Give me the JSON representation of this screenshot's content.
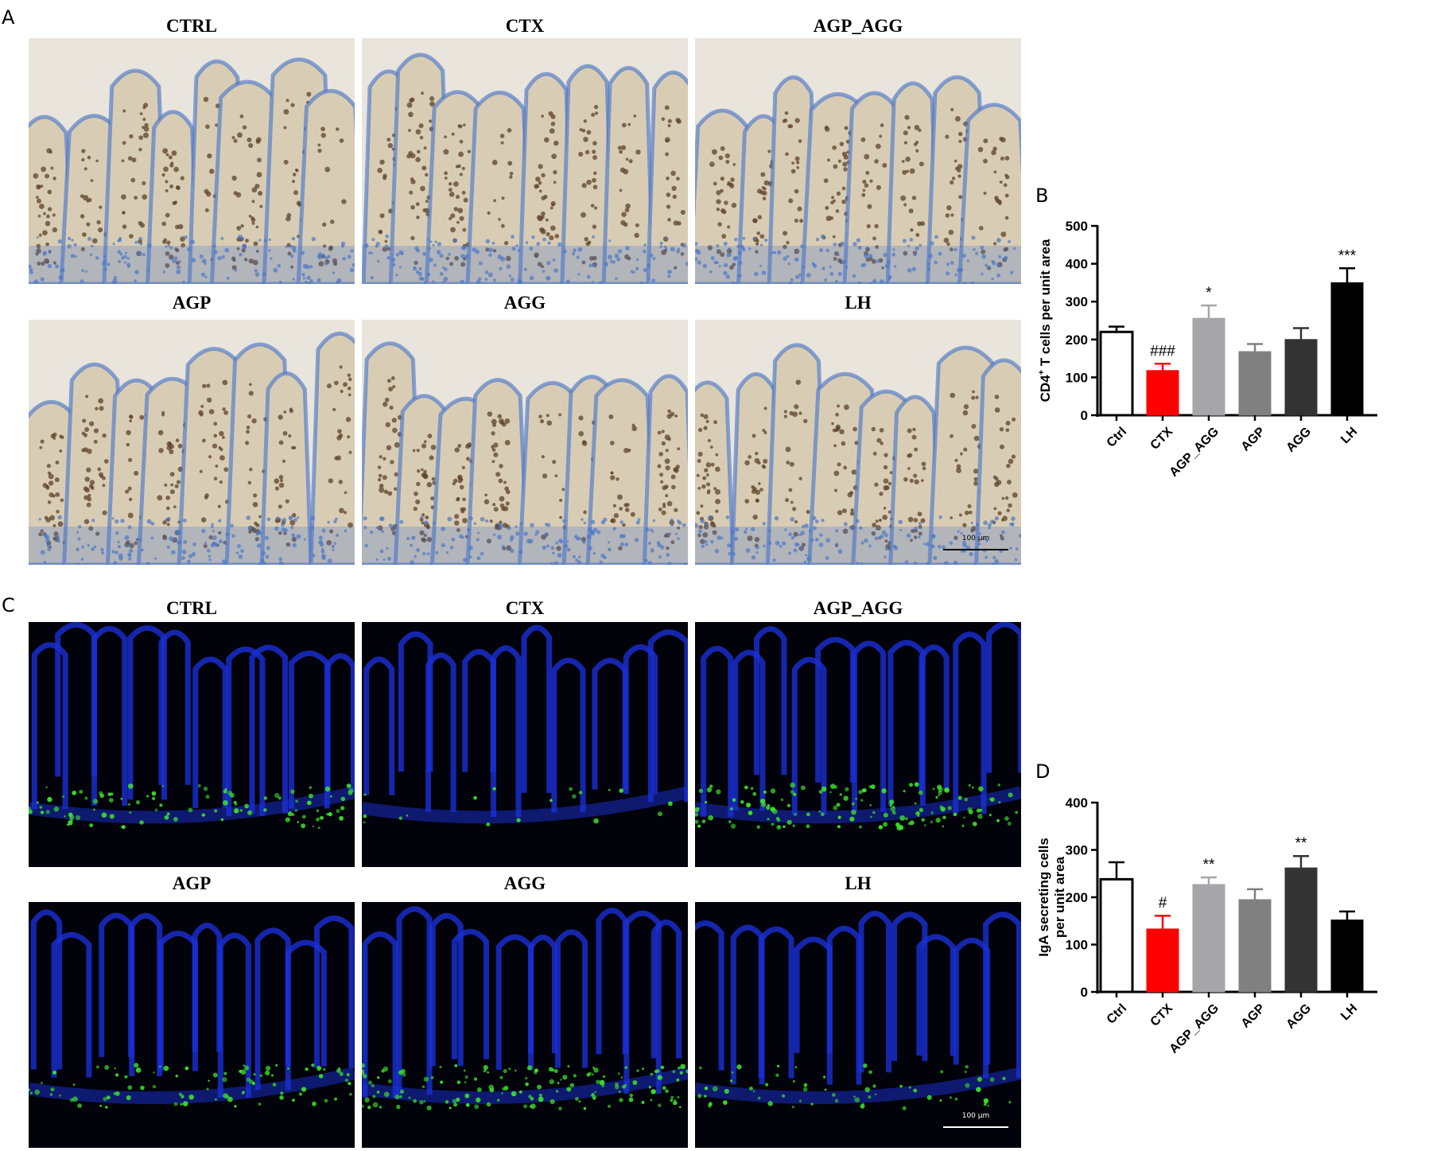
{
  "panels": {
    "A": {
      "letter": "A",
      "titles": [
        "CTRL",
        "CTX",
        "AGP_AGG",
        "AGP",
        "AGG",
        "LH"
      ],
      "scale_bar": "100 μm"
    },
    "B": {
      "letter": "B"
    },
    "C": {
      "letter": "C",
      "titles": [
        "CTRL",
        "CTX",
        "AGP_AGG",
        "AGP",
        "AGG",
        "LH"
      ],
      "scale_bar": "100 μm"
    },
    "D": {
      "letter": "D"
    }
  },
  "colors": {
    "ihc_background": "#e9e5dc",
    "ihc_nuclei": "#4f78c8",
    "ihc_stain": "#5e4128",
    "if_background": "#02020a",
    "if_nuclei": "#1a2fd6",
    "if_stain": "#3ee62a",
    "ctrl": "#ffffff",
    "ctx": "#ff0000",
    "agp_agg": "#a6a6aa",
    "agp": "#808080",
    "agg": "#333333",
    "lh": "#000000"
  },
  "chart_data": [
    {
      "type": "bar",
      "panel": "B",
      "ylabel_main": "CD4",
      "ylabel_sup": "+",
      "ylabel_rest": " T cells per unit area",
      "categories": [
        "Ctrl",
        "CTX",
        "AGP_AGG",
        "AGP",
        "AGG",
        "LH"
      ],
      "values": [
        220,
        118,
        256,
        168,
        200,
        350
      ],
      "errors": [
        14,
        18,
        34,
        20,
        30,
        38
      ],
      "annotations": [
        "",
        "###",
        "*",
        "",
        "",
        "***"
      ],
      "fill_colors": [
        "#ffffff",
        "#ff0000",
        "#a6a6aa",
        "#808080",
        "#333333",
        "#000000"
      ],
      "ylim": [
        0,
        500
      ],
      "yticks": [
        "0",
        "100",
        "200",
        "300",
        "400",
        "500"
      ]
    },
    {
      "type": "bar",
      "panel": "D",
      "ylabel_line1": "IgA secreting cells",
      "ylabel_line2": "per unit area",
      "categories": [
        "Ctrl",
        "CTX",
        "AGP_AGG",
        "AGP",
        "AGG",
        "LH"
      ],
      "values": [
        238,
        133,
        227,
        195,
        262,
        152
      ],
      "errors": [
        36,
        28,
        15,
        22,
        25,
        18
      ],
      "annotations": [
        "",
        "#",
        "**",
        "",
        "**",
        ""
      ],
      "fill_colors": [
        "#ffffff",
        "#ff0000",
        "#a6a6aa",
        "#808080",
        "#333333",
        "#000000"
      ],
      "ylim": [
        0,
        400
      ],
      "yticks": [
        "0",
        "100",
        "200",
        "300",
        "400"
      ]
    }
  ]
}
